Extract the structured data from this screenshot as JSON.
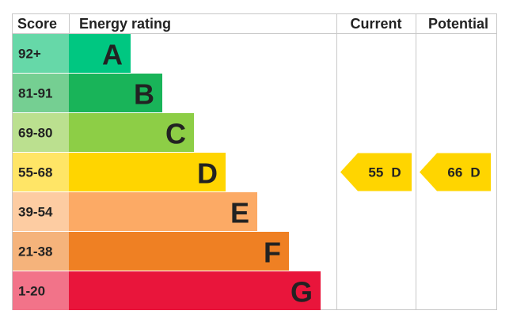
{
  "header": {
    "score": "Score",
    "rating": "Energy rating",
    "current": "Current",
    "potential": "Potential"
  },
  "bands": [
    {
      "score": "92+",
      "letter": "A",
      "color": "#00c781",
      "light": "#66d8a8"
    },
    {
      "score": "81-91",
      "letter": "B",
      "color": "#19b459",
      "light": "#75cf92"
    },
    {
      "score": "69-80",
      "letter": "C",
      "color": "#8dce46",
      "light": "#bbe08f"
    },
    {
      "score": "55-68",
      "letter": "D",
      "color": "#ffd500",
      "light": "#ffe566"
    },
    {
      "score": "39-54",
      "letter": "E",
      "color": "#fcaa65",
      "light": "#fdcca2"
    },
    {
      "score": "21-38",
      "letter": "F",
      "color": "#ef8023",
      "light": "#f5b37b"
    },
    {
      "score": "1-20",
      "letter": "G",
      "color": "#e9153b",
      "light": "#f27389"
    }
  ],
  "current": {
    "value": 55,
    "letter": "D"
  },
  "potential": {
    "value": 66,
    "letter": "D"
  }
}
